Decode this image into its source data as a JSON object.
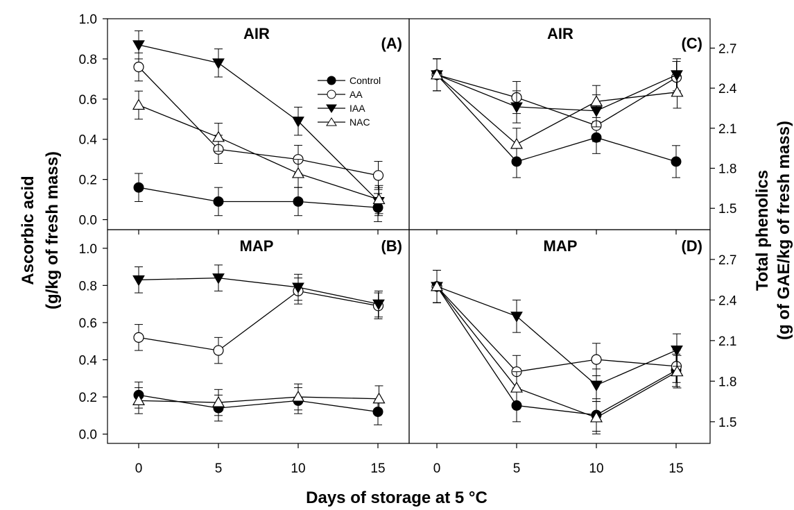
{
  "figure": {
    "xlabel": "Days of storage at 5 °C",
    "ylabel_left_line1": "Ascorbic acid",
    "ylabel_left_line2": "(g/kg of fresh mass)",
    "ylabel_right_line1": "Total phenolics",
    "ylabel_right_line2": "(g of GAE/kg of fresh mass)"
  },
  "legend": {
    "entries": [
      {
        "name": "Control",
        "marker": "filled-circle"
      },
      {
        "name": "AA",
        "marker": "open-circle"
      },
      {
        "name": "IAA",
        "marker": "filled-triangle-down"
      },
      {
        "name": "NAC",
        "marker": "open-triangle-up"
      }
    ]
  },
  "chart_data": [
    {
      "type": "line",
      "panel": "A",
      "panel_label": "(A)",
      "title": "AIR",
      "ylabel": "Ascorbic acid (g/kg of fresh mass)",
      "ylim": [
        -0.05,
        1.0
      ],
      "yticks": [
        "0.0",
        "0.2",
        "0.4",
        "0.6",
        "0.8",
        "1.0"
      ],
      "x": [
        0,
        5,
        10,
        15
      ],
      "xticks": [],
      "series": [
        {
          "name": "Control",
          "values": [
            0.16,
            0.09,
            0.09,
            0.06
          ],
          "errors": [
            0.07,
            0.07,
            0.07,
            0.07
          ]
        },
        {
          "name": "AA",
          "values": [
            0.76,
            0.35,
            0.3,
            0.22
          ],
          "errors": [
            0.07,
            0.07,
            0.07,
            0.07
          ]
        },
        {
          "name": "IAA",
          "values": [
            0.87,
            0.78,
            0.49,
            0.09
          ],
          "errors": [
            0.07,
            0.07,
            0.07,
            0.07
          ]
        },
        {
          "name": "NAC",
          "values": [
            0.57,
            0.41,
            0.23,
            0.1
          ],
          "errors": [
            0.07,
            0.07,
            0.07,
            0.07
          ]
        }
      ]
    },
    {
      "type": "line",
      "panel": "B",
      "panel_label": "(B)",
      "title": "MAP",
      "ylabel": "Ascorbic acid (g/kg of fresh mass)",
      "ylim": [
        -0.05,
        1.1
      ],
      "yticks": [
        "0.0",
        "0.2",
        "0.4",
        "0.6",
        "0.8",
        "1.0"
      ],
      "x": [
        0,
        5,
        10,
        15
      ],
      "xticks": [
        "0",
        "5",
        "10",
        "15"
      ],
      "series": [
        {
          "name": "Control",
          "values": [
            0.21,
            0.14,
            0.18,
            0.12
          ],
          "errors": [
            0.07,
            0.07,
            0.07,
            0.07
          ]
        },
        {
          "name": "AA",
          "values": [
            0.52,
            0.45,
            0.77,
            0.69
          ],
          "errors": [
            0.07,
            0.07,
            0.07,
            0.07
          ]
        },
        {
          "name": "IAA",
          "values": [
            0.83,
            0.84,
            0.79,
            0.7
          ],
          "errors": [
            0.07,
            0.07,
            0.07,
            0.07
          ]
        },
        {
          "name": "NAC",
          "values": [
            0.18,
            0.17,
            0.2,
            0.19
          ],
          "errors": [
            0.07,
            0.07,
            0.07,
            0.07
          ]
        }
      ]
    },
    {
      "type": "line",
      "panel": "C",
      "panel_label": "(C)",
      "title": "AIR",
      "ylabel": "Total phenolics (g of GAE/kg of fresh mass)",
      "ylim": [
        1.34,
        2.92
      ],
      "yticks": [
        "1.5",
        "1.8",
        "2.1",
        "2.4",
        "2.7"
      ],
      "x": [
        0,
        5,
        10,
        15
      ],
      "xticks": [],
      "series": [
        {
          "name": "Control",
          "values": [
            2.5,
            1.85,
            2.03,
            1.85
          ],
          "errors": [
            0.12,
            0.12,
            0.12,
            0.12
          ]
        },
        {
          "name": "AA",
          "values": [
            2.5,
            2.33,
            2.12,
            2.48
          ],
          "errors": [
            0.12,
            0.12,
            0.12,
            0.12
          ]
        },
        {
          "name": "IAA",
          "values": [
            2.5,
            2.26,
            2.23,
            2.5
          ],
          "errors": [
            0.12,
            0.12,
            0.12,
            0.12
          ]
        },
        {
          "name": "NAC",
          "values": [
            2.5,
            1.98,
            2.3,
            2.37
          ],
          "errors": [
            0.12,
            0.12,
            0.12,
            0.12
          ]
        }
      ]
    },
    {
      "type": "line",
      "panel": "D",
      "panel_label": "(D)",
      "title": "MAP",
      "ylabel": "Total phenolics (g of GAE/kg of fresh mass)",
      "ylim": [
        1.34,
        2.92
      ],
      "yticks": [
        "1.5",
        "1.8",
        "2.1",
        "2.4",
        "2.7"
      ],
      "x": [
        0,
        5,
        10,
        15
      ],
      "xticks": [
        "0",
        "5",
        "10",
        "15"
      ],
      "series": [
        {
          "name": "Control",
          "values": [
            2.5,
            1.62,
            1.55,
            1.88
          ],
          "errors": [
            0.12,
            0.12,
            0.12,
            0.12
          ]
        },
        {
          "name": "AA",
          "values": [
            2.5,
            1.87,
            1.96,
            1.91
          ],
          "errors": [
            0.12,
            0.12,
            0.12,
            0.12
          ]
        },
        {
          "name": "IAA",
          "values": [
            2.5,
            2.28,
            1.77,
            2.03
          ],
          "errors": [
            0.12,
            0.12,
            0.12,
            0.12
          ]
        },
        {
          "name": "NAC",
          "values": [
            2.5,
            1.75,
            1.53,
            1.87
          ],
          "errors": [
            0.12,
            0.12,
            0.12,
            0.12
          ]
        }
      ]
    }
  ]
}
